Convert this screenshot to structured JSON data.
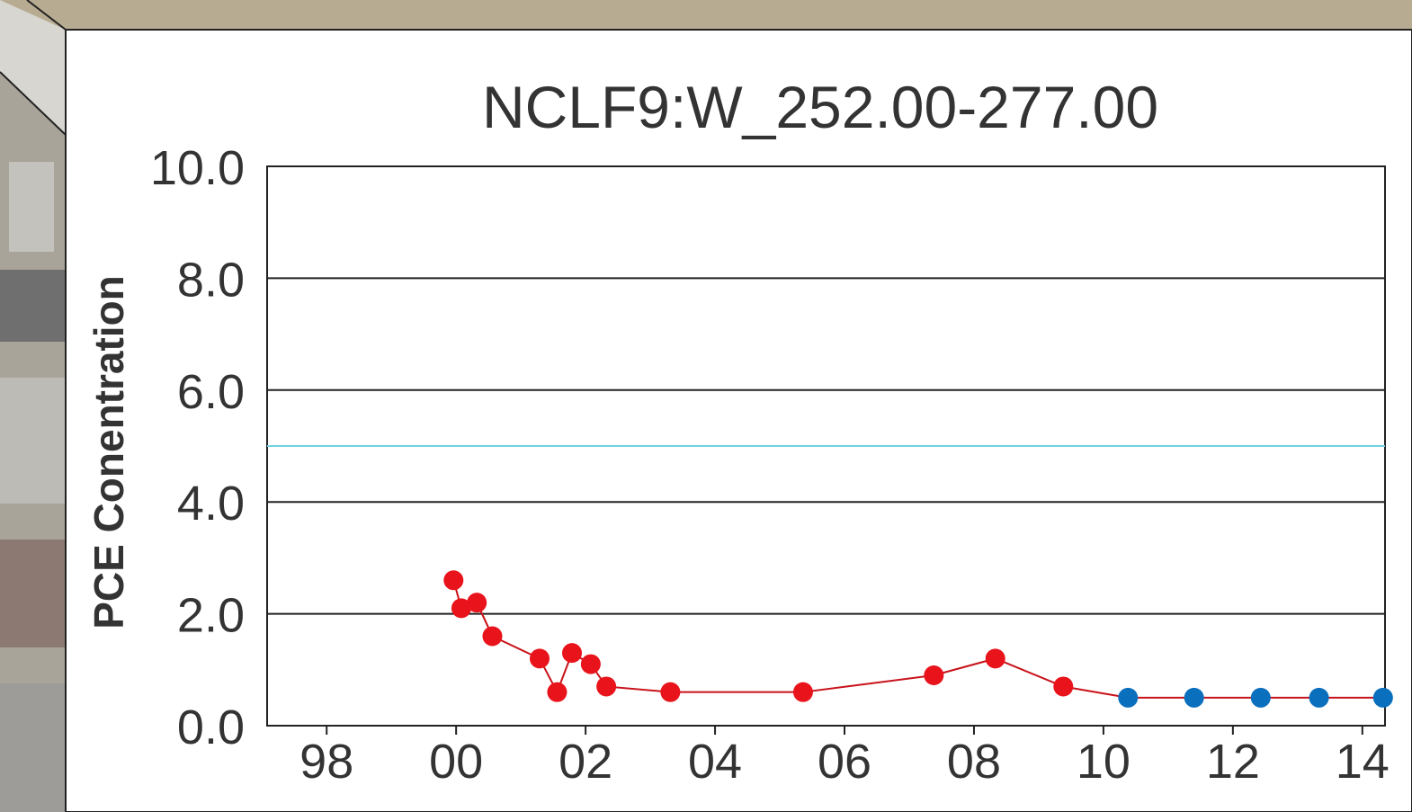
{
  "chart_data": {
    "type": "line",
    "title": "NCLF9:W_252.00-277.00",
    "y_label": "PCE Conentration",
    "series": [
      {
        "color": "#e8131b",
        "x": [
          1999.96,
          2000.08,
          2000.32,
          2000.56,
          2001.29,
          2001.56,
          2001.79,
          2002.08,
          2002.32,
          2003.31,
          2005.36,
          2007.38,
          2008.33,
          2009.38
        ],
        "values": [
          2.6,
          2.1,
          2.2,
          1.6,
          1.2,
          0.6,
          1.3,
          1.1,
          0.7,
          0.6,
          0.6,
          0.9,
          1.2,
          0.7
        ]
      },
      {
        "color": "#0a6fbd",
        "x": [
          2010.38,
          2011.4,
          2012.43,
          2013.33,
          2014.32
        ],
        "values": [
          0.5,
          0.5,
          0.5,
          0.5,
          0.5
        ]
      }
    ],
    "line_color": "#c8121a",
    "reference_line": {
      "value": 5,
      "color": "#6fd3dd"
    },
    "xlim": [
      1997.08,
      2014.35
    ],
    "xticks": [
      {
        "value": 1998,
        "label": "98"
      },
      {
        "value": 2000,
        "label": "00"
      },
      {
        "value": 2002,
        "label": "02"
      },
      {
        "value": 2004,
        "label": "04"
      },
      {
        "value": 2006,
        "label": "06"
      },
      {
        "value": 2008,
        "label": "08"
      },
      {
        "value": 2010,
        "label": "10"
      },
      {
        "value": 2012,
        "label": "12"
      },
      {
        "value": 2014,
        "label": "14"
      }
    ],
    "ylim": [
      0,
      10
    ],
    "yticks": [
      {
        "value": 0,
        "label": "0.0"
      },
      {
        "value": 2,
        "label": "2.0"
      },
      {
        "value": 4,
        "label": "4.0"
      },
      {
        "value": 6,
        "label": "6.0"
      },
      {
        "value": 8,
        "label": "8.0"
      },
      {
        "value": 10,
        "label": "10.0"
      }
    ],
    "grid": true
  }
}
